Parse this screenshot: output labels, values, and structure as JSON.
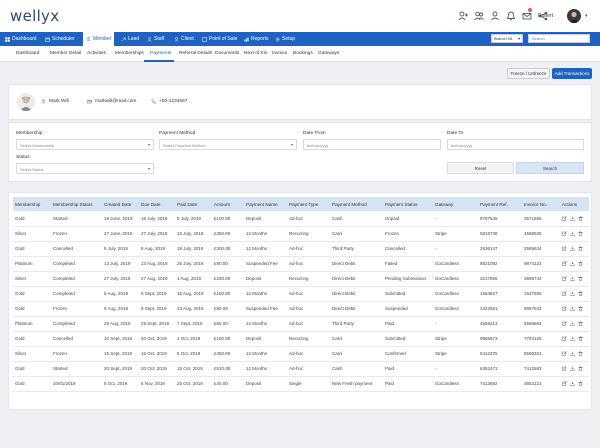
{
  "app": {
    "logo": "wellyx"
  },
  "user": {
    "name": "Robert"
  },
  "nav": {
    "items": [
      {
        "label": "Dashboard"
      },
      {
        "label": "Scheduler"
      },
      {
        "label": "Member"
      },
      {
        "label": "Lead"
      },
      {
        "label": "Staff"
      },
      {
        "label": "Client"
      },
      {
        "label": "Point of Sale"
      },
      {
        "label": "Reports"
      },
      {
        "label": "Setup"
      }
    ],
    "active": "Member",
    "branch": "Branch N1",
    "search_placeholder": "Search"
  },
  "subnav": {
    "items": [
      "Dashboard",
      "Member Detail",
      "Activities",
      "Memberships",
      "Payments",
      "Referral Details",
      "Documents",
      "Next of Kin",
      "Invoice",
      "Bookings",
      "Gateways"
    ],
    "active": "Payments"
  },
  "actions": {
    "freeze": "Freeze / Unfreeze",
    "add": "Add Transactions"
  },
  "member": {
    "name": "Mark Will",
    "email": "markwill@mail.com",
    "phone": "+00-1234567"
  },
  "filters": {
    "membership_label": "Membership",
    "membership_placeholder": "Select Membership",
    "payment_method_label": "Payment Method",
    "payment_method_placeholder": "Select Payment Method",
    "date_from_label": "Date From",
    "date_from_placeholder": "dd/mm/yyyy",
    "date_to_label": "Date To",
    "date_to_placeholder": "dd/mm/yyyy",
    "status_label": "Status",
    "status_placeholder": "Select Status",
    "reset": "Reset",
    "search": "Search"
  },
  "table": {
    "headers": [
      "Membership",
      "Membership Status",
      "Created Date",
      "Due Date",
      "Paid Date",
      "Amount",
      "Payment Name",
      "Payment Type",
      "Payment Method",
      "Payment Status",
      "Gateway",
      "Payment Ref.",
      "Invoice No.",
      "Actions"
    ],
    "rows": [
      [
        "Gold",
        "Started",
        "18 June, 2019",
        "18 July, 2019",
        "5 July, 2019",
        "£100.00",
        "Deposit",
        "Ad-hoc",
        "Cash",
        "Unpaid",
        "-",
        "8787545",
        "3571595"
      ],
      [
        "Silver",
        "Frozen",
        "27 June, 2019",
        "27 July, 2019",
        "15 July, 2019",
        "£350.00",
        "12 Months",
        "Recurring",
        "Card",
        "Frozen",
        "Stripe",
        "5818736",
        "4568525"
      ],
      [
        "Gold",
        "Cancelled",
        "8 July, 2019",
        "8 Aug, 2019",
        "18 July, 2019",
        "£300.00",
        "12 Months",
        "Ad-hoc",
        "Third Party",
        "Cancelled",
        "-",
        "2536147",
        "2589634"
      ],
      [
        "Platinum",
        "Completed",
        "13 July, 2019",
        "13 Aug, 2019",
        "25 July, 2019",
        "£90.00",
        "Suspended Fee",
        "Ad-hoc",
        "Direct Debit",
        "Failed",
        "GoCardless",
        "8521092",
        "9874123"
      ],
      [
        "Silver",
        "Completed",
        "27 July, 2019",
        "27 Aug, 2019",
        "1 Aug, 2019",
        "£230.00",
        "Deposit",
        "Recurring",
        "Direct Debit",
        "Pending Submission",
        "GoCardless",
        "3217856",
        "3698744"
      ],
      [
        "Gold",
        "Completed",
        "5 Aug, 2019",
        "5 Sept, 2019",
        "15 Aug, 2019",
        "£150.00",
        "12 Months",
        "Ad-hoc",
        "Direct Debit",
        "Submitted",
        "GoCardless",
        "1554827",
        "1537595"
      ],
      [
        "Gold",
        "Frozen",
        "9 Aug, 2019",
        "9 Sept, 2019",
        "23 Aug, 2019",
        "£90.00",
        "Suspended Fee",
        "Ad-hoc",
        "Direct Debit",
        "Suspended",
        "GoCardless",
        "3322551",
        "8987543"
      ],
      [
        "Platinum",
        "Completed",
        "29 Aug, 2019",
        "29 Sept, 2019",
        "7 Sept, 2019",
        "£80.00",
        "12 Months",
        "Ad-hoc",
        "Third Party",
        "Paid",
        "-",
        "4566213",
        "5588664"
      ],
      [
        "Gold",
        "Cancelled",
        "10 Sept, 2019",
        "10 Oct, 2019",
        "1 Oct, 2019",
        "£150.00",
        "Deposit",
        "Recurring",
        "Card",
        "Submitted",
        "Stripe",
        "9966873",
        "7744125"
      ],
      [
        "Silver",
        "Frozen",
        "15 Sept, 2019",
        "15 Oct, 2019",
        "5 Oct, 2019",
        "£450.00",
        "12 Months",
        "Ad-hoc",
        "Card",
        "Confirmed",
        "Stripe",
        "5412375",
        "8569324"
      ],
      [
        "Gold",
        "Started",
        "20 Sept, 2019",
        "20 Oct, 2019",
        "15 Oct, 2019",
        "£510.00",
        "12 Months",
        "Ad-hoc",
        "Cash",
        "Paid",
        "-",
        "6352471",
        "7412583"
      ],
      [
        "Gold",
        "10/01/2019",
        "6 Oct, 2019",
        "6 Nov, 2019",
        "25 Oct, 2019",
        "£40.00",
        "Deposit",
        "Single",
        "New Fresh payment",
        "Paid",
        "GoCardless",
        "7413692",
        "3653121"
      ]
    ]
  },
  "colors": {
    "brand": "#1e63c4",
    "header_bg": "#d6e3f3"
  },
  "icons": {
    "user_add": "user-plus-icon",
    "users": "users-icon",
    "user": "user-icon",
    "bell": "bell-icon",
    "mail": "mail-icon",
    "share": "share-icon",
    "edit": "edit-icon",
    "download": "download-icon",
    "delete": "trash-icon"
  }
}
